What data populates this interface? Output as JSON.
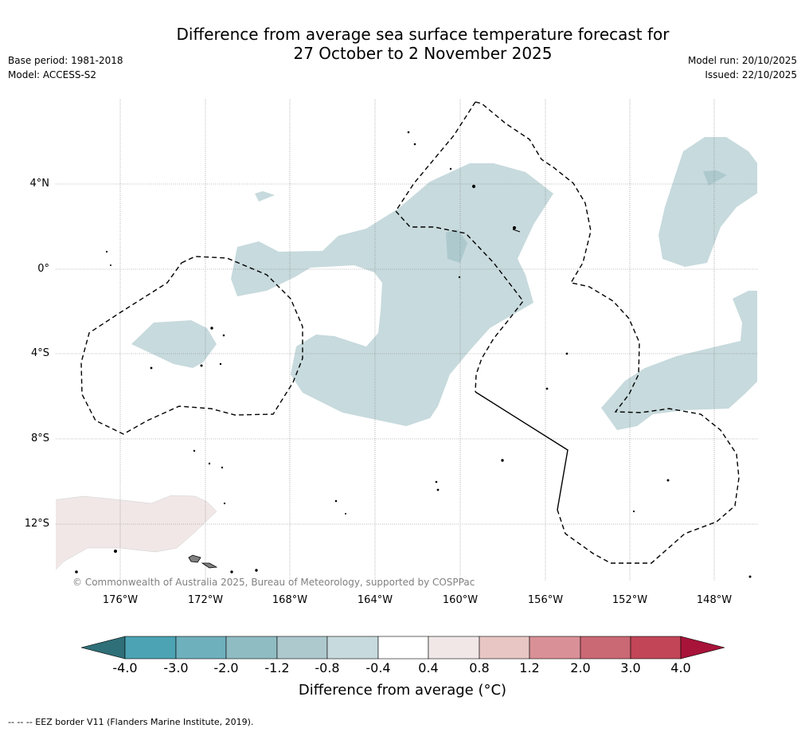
{
  "header": {
    "title_line1": "Difference from average sea surface temperature forecast for",
    "title_line2": "27 October to 2 November 2025",
    "base_period": "Base period: 1981-2018",
    "model": "Model: ACCESS-S2",
    "model_run": "Model run: 20/10/2025",
    "issued": "Issued: 22/10/2025"
  },
  "map": {
    "lat_labels": [
      "4°N",
      "0°",
      "4°S",
      "8°S",
      "12°S"
    ],
    "lon_labels": [
      "176°W",
      "172°W",
      "168°W",
      "164°W",
      "160°W",
      "156°W",
      "152°W",
      "148°W"
    ],
    "copyright": "© Commonwealth of Australia 2025, Bureau of Meteorology, supported by COSPPac"
  },
  "colorbar": {
    "labels": [
      "-4.0",
      "-3.0",
      "-2.0",
      "-1.2",
      "-0.8",
      "-0.4",
      "0.4",
      "0.8",
      "1.2",
      "2.0",
      "3.0",
      "4.0"
    ],
    "colors": {
      "under": "#2f6f78",
      "bins": [
        "#4ba3b3",
        "#6fb0bd",
        "#8fbcc3",
        "#adc9ce",
        "#c7dadd",
        "#ffffff",
        "#f1e7e7",
        "#e8c6c4",
        "#d99096",
        "#ca6874",
        "#c24557"
      ],
      "over": "#a8133a"
    },
    "title": "Difference from average (°C)"
  },
  "legend_note": "--  --  -- EEZ border V11 (Flanders Marine Institute, 2019)."
}
